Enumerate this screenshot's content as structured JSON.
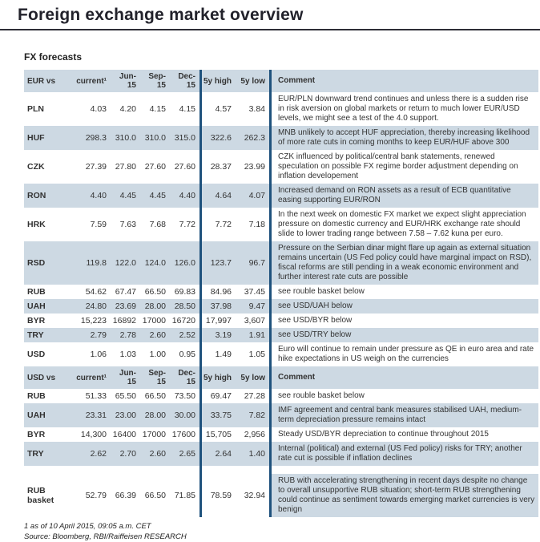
{
  "page": {
    "title": "Foreign exchange market overview",
    "section_title": "FX forecasts",
    "footnote": "1 as of 10 April 2015, 09:05 a.m. CET",
    "source": "Source: Bloomberg, RBI/Raiffeisen RESEARCH"
  },
  "colors": {
    "divider_line": "#1f527d",
    "shaded_row": "#cdd9e3",
    "title_rule": "#2e2e37",
    "text": "#333333"
  },
  "tables": [
    {
      "headers": [
        "EUR vs",
        "current¹",
        "Jun-15",
        "Sep-15",
        "Dec-15",
        "5y high",
        "5y low",
        "Comment"
      ],
      "rows": [
        {
          "label": "PLN",
          "forecasts": [
            "4.03",
            "4.20",
            "4.15",
            "4.15"
          ],
          "range": [
            "4.57",
            "3.84"
          ],
          "shaded": false,
          "comment": "EUR/PLN downward trend continues and unless there is a sudden rise in risk aversion on global markets or return to much lower EUR/USD levels, we might see a test of the 4.0 support."
        },
        {
          "label": "HUF",
          "forecasts": [
            "298.3",
            "310.0",
            "310.0",
            "315.0"
          ],
          "range": [
            "322.6",
            "262.3"
          ],
          "shaded": true,
          "comment": "MNB unlikely to accept HUF appreciation, thereby increasing likelihood of more rate cuts in coming months to keep EUR/HUF above 300"
        },
        {
          "label": "CZK",
          "forecasts": [
            "27.39",
            "27.80",
            "27.60",
            "27.60"
          ],
          "range": [
            "28.37",
            "23.99"
          ],
          "shaded": false,
          "comment": "CZK influenced by political/central bank statements, renewed speculation on possible FX regime border adjustment depending on inflation developement"
        },
        {
          "label": "RON",
          "forecasts": [
            "4.40",
            "4.45",
            "4.45",
            "4.40"
          ],
          "range": [
            "4.64",
            "4.07"
          ],
          "shaded": true,
          "comment": "Increased demand on RON assets as a result of ECB quantitative easing supporting EUR/RON"
        },
        {
          "label": "HRK",
          "forecasts": [
            "7.59",
            "7.63",
            "7.68",
            "7.72"
          ],
          "range": [
            "7.72",
            "7.18"
          ],
          "shaded": false,
          "comment": "In the next week on domestic FX market we expect slight appreciation pressure on domestic currency and EUR/HRK exchange rate should slide to lower trading range between 7.58 – 7.62 kuna per euro."
        },
        {
          "label": "RSD",
          "forecasts": [
            "119.8",
            "122.0",
            "124.0",
            "126.0"
          ],
          "range": [
            "123.7",
            "96.7"
          ],
          "shaded": true,
          "comment": "Pressure on the Serbian dinar might flare up again as external situation remains uncertain (US Fed policy could have marginal impact on RSD), fiscal reforms are still pending in a weak economic environment and further interest rate cuts are possible"
        },
        {
          "label": "RUB",
          "forecasts": [
            "54.62",
            "67.47",
            "66.50",
            "69.83"
          ],
          "range": [
            "84.96",
            "37.45"
          ],
          "shaded": false,
          "comment": "see rouble basket below"
        },
        {
          "label": "UAH",
          "forecasts": [
            "24.80",
            "23.69",
            "28.00",
            "28.50"
          ],
          "range": [
            "37.98",
            "9.47"
          ],
          "shaded": true,
          "comment": "see USD/UAH below"
        },
        {
          "label": "BYR",
          "forecasts": [
            "15,223",
            "16892",
            "17000",
            "16720"
          ],
          "range": [
            "17,997",
            "3,607"
          ],
          "shaded": false,
          "comment": "see USD/BYR below"
        },
        {
          "label": "TRY",
          "forecasts": [
            "2.79",
            "2.78",
            "2.60",
            "2.52"
          ],
          "range": [
            "3.19",
            "1.91"
          ],
          "shaded": true,
          "comment": "see USD/TRY below"
        },
        {
          "label": "USD",
          "forecasts": [
            "1.06",
            "1.03",
            "1.00",
            "0.95"
          ],
          "range": [
            "1.49",
            "1.05"
          ],
          "shaded": false,
          "comment": "Euro will continue to remain under pressure as QE in euro area and rate hike expectations in US weigh on the currencies"
        }
      ]
    },
    {
      "headers": [
        "USD vs",
        "current¹",
        "Jun-15",
        "Sep-15",
        "Dec-15",
        "5y high",
        "5y low",
        "Comment"
      ],
      "rows": [
        {
          "label": "RUB",
          "forecasts": [
            "51.33",
            "65.50",
            "66.50",
            "73.50"
          ],
          "range": [
            "69.47",
            "27.28"
          ],
          "shaded": false,
          "comment": "see rouble basket below"
        },
        {
          "label": "UAH",
          "forecasts": [
            "23.31",
            "23.00",
            "28.00",
            "30.00"
          ],
          "range": [
            "33.75",
            "7.82"
          ],
          "shaded": true,
          "comment": "IMF agreement and central bank measures stabilised UAH, medium-term depreciation pressure remains intact"
        },
        {
          "label": "BYR",
          "forecasts": [
            "14,300",
            "16400",
            "17000",
            "17600"
          ],
          "range": [
            "15,705",
            "2,956"
          ],
          "shaded": false,
          "comment": "Steady USD/BYR depreciation to continue throughout 2015"
        },
        {
          "label": "TRY",
          "forecasts": [
            "2.62",
            "2.70",
            "2.60",
            "2.65"
          ],
          "range": [
            "2.64",
            "1.40"
          ],
          "shaded": true,
          "comment": "Internal (political) and external (US Fed policy) risks for TRY; another rate cut is possible if inflation declines"
        },
        {
          "label": "RUB basket",
          "forecasts": [
            "52.79",
            "66.39",
            "66.50",
            "71.85"
          ],
          "range": [
            "78.59",
            "32.94"
          ],
          "shaded": false,
          "comment_shaded": true,
          "spacer_before": true,
          "comment": "RUB with accelerating strengthening in recent days despite no change to overall unsupportive RUB situation; short-term RUB strengthening could continue as sentiment towards emerging market currencies is very benign"
        }
      ]
    }
  ]
}
